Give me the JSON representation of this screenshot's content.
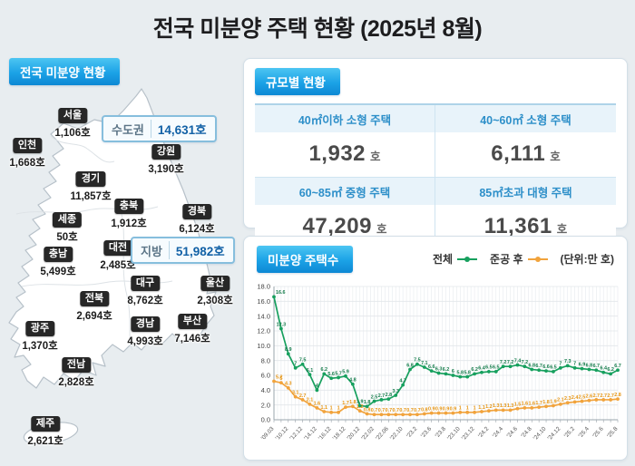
{
  "title": "전국 미분양 주택 현황  (2025년 8월)",
  "map_panel": {
    "header": "전국 미분양 현황",
    "callouts": [
      {
        "name": "수도권",
        "value": "14,631호"
      },
      {
        "name": "지방",
        "value": "51,982호"
      }
    ],
    "regions": [
      {
        "name": "서울",
        "value": "1,106호"
      },
      {
        "name": "인천",
        "value": "1,668호"
      },
      {
        "name": "경기",
        "value": "11,857호"
      },
      {
        "name": "강원",
        "value": "3,190호"
      },
      {
        "name": "충북",
        "value": "1,912호"
      },
      {
        "name": "경북",
        "value": "6,124호"
      },
      {
        "name": "세종",
        "value": "50호"
      },
      {
        "name": "대전",
        "value": "2,485호"
      },
      {
        "name": "충남",
        "value": "5,499호"
      },
      {
        "name": "대구",
        "value": "8,762호"
      },
      {
        "name": "울산",
        "value": "2,308호"
      },
      {
        "name": "전북",
        "value": "2,694호"
      },
      {
        "name": "경남",
        "value": "4,993호"
      },
      {
        "name": "부산",
        "value": "7,146호"
      },
      {
        "name": "광주",
        "value": "1,370호"
      },
      {
        "name": "전남",
        "value": "2,828호"
      },
      {
        "name": "제주",
        "value": "2,621호"
      }
    ]
  },
  "size_panel": {
    "header": "규모별 현황",
    "cells": [
      {
        "label": "40㎡이하 소형 주택",
        "value": "1,932",
        "unit": "호"
      },
      {
        "label": "40~60㎡ 소형 주택",
        "value": "6,111",
        "unit": "호"
      },
      {
        "label": "60~85㎡ 중형 주택",
        "value": "47,209",
        "unit": "호"
      },
      {
        "label": "85㎡초과 대형 주택",
        "value": "11,361",
        "unit": "호"
      }
    ]
  },
  "chart_panel": {
    "header": "미분양 주택수",
    "unit_note": "(단위:만 호)"
  },
  "chart_data": {
    "type": "line",
    "title": "미분양 주택수",
    "unit": "만 호",
    "ylim": [
      0,
      18
    ],
    "ytick_step": 2,
    "grid": true,
    "legend_position": "top-right",
    "x_tick_every": 2,
    "x_tick_labels": [
      "'09.03",
      "'10.12",
      "'12.12",
      "'14.12",
      "'16.12",
      "'18.12",
      "'20.12",
      "'22.02",
      "'22.06",
      "'22.10",
      "'23.2",
      "'23.6",
      "'23.8",
      "'23.10",
      "'23.12",
      "'24.2",
      "'24.4",
      "'24.6",
      "'24.8",
      "'24.10",
      "'24.12",
      "'25.2",
      "'25.4",
      "'25.6",
      "'25.8"
    ],
    "series": [
      {
        "name": "전체",
        "color": "#17a05e",
        "label_color": "#127a49",
        "values": [
          16.6,
          12.3,
          8.9,
          7.0,
          7.5,
          6.1,
          4.0,
          6.2,
          5.6,
          5.7,
          5.9,
          4.8,
          1.9,
          1.8,
          2.5,
          2.7,
          2.8,
          3.3,
          4.7,
          6.8,
          7.5,
          7.1,
          6.6,
          6.3,
          6.2,
          6.0,
          5.8,
          5.8,
          6.2,
          6.4,
          6.5,
          6.5,
          7.2,
          7.2,
          7.4,
          7.2,
          6.8,
          6.7,
          6.6,
          6.5,
          7.0,
          7.3,
          7.0,
          6.9,
          6.8,
          6.7,
          6.4,
          6.2,
          6.7
        ]
      },
      {
        "name": "준공 후",
        "color": "#f1a33c",
        "label_color": "#e5930f",
        "values": [
          5.2,
          5.0,
          4.3,
          3.1,
          2.7,
          2.1,
          1.6,
          1.1,
          1.0,
          1.0,
          1.7,
          1.8,
          1.2,
          0.8,
          0.7,
          0.7,
          0.7,
          0.7,
          0.7,
          0.7,
          0.7,
          0.8,
          0.9,
          0.9,
          0.9,
          0.9,
          1.0,
          1.0,
          1.0,
          1.1,
          1.2,
          1.3,
          1.3,
          1.3,
          1.5,
          1.6,
          1.6,
          1.7,
          1.8,
          1.9,
          2.1,
          2.3,
          2.4,
          2.5,
          2.6,
          2.7,
          2.7,
          2.7,
          2.8
        ]
      }
    ]
  }
}
